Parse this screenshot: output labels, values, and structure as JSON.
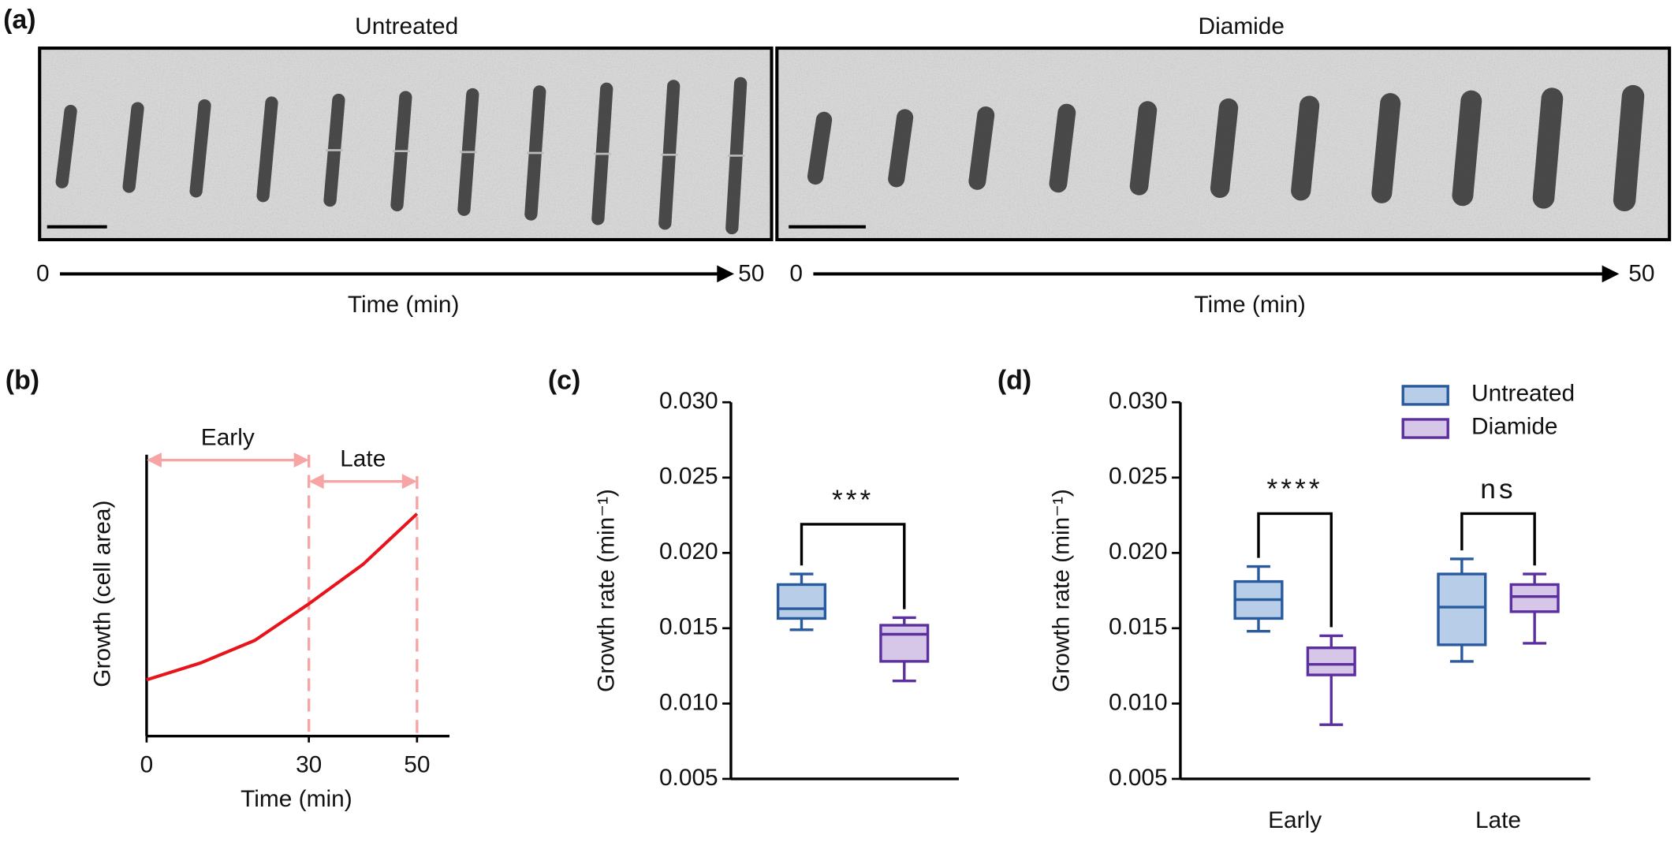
{
  "panel_a": {
    "label": "(a)",
    "panels": [
      {
        "title": "Untreated",
        "start": 0,
        "end": 50,
        "axis_label": "Time (min)"
      },
      {
        "title": "Diamide",
        "start": 0,
        "end": 50,
        "axis_label": "Time (min)"
      }
    ]
  },
  "chart_data": [
    {
      "type": "line",
      "panel": "(b)",
      "xlabel": "Time (min)",
      "ylabel": "Growth (cell area)",
      "x": [
        0,
        10,
        20,
        30,
        40,
        50
      ],
      "values": [
        20,
        26,
        34,
        47,
        61,
        79
      ],
      "color": "#e8141b",
      "xlim": [
        0,
        56
      ],
      "ylim": [
        0,
        100
      ],
      "xticks": [
        0,
        30,
        50
      ],
      "phases": [
        {
          "label": "Early",
          "start": 0,
          "end": 30
        },
        {
          "label": "Late",
          "start": 30,
          "end": 50
        }
      ],
      "phase_color": "#f7a4a4"
    },
    {
      "type": "box",
      "panel": "(c)",
      "ylabel": "Growth rate (min⁻¹)",
      "ylim": [
        0.005,
        0.03
      ],
      "yticks": [
        {
          "value": 0.005,
          "label": "0.005"
        },
        {
          "value": 0.01,
          "label": "0.010"
        },
        {
          "value": 0.015,
          "label": "0.015"
        },
        {
          "value": 0.02,
          "label": "0.020"
        },
        {
          "value": 0.025,
          "label": "0.025"
        },
        {
          "value": 0.03,
          "label": "0.030"
        }
      ],
      "boxes": [
        {
          "color": "#2a5a9e",
          "fill": "#b7cde8",
          "min": 0.0149,
          "q1": 0.01565,
          "median": 0.0163,
          "q3": 0.0179,
          "max": 0.0186
        },
        {
          "color": "#5b2f9e",
          "fill": "#d6c6e8",
          "min": 0.0115,
          "q1": 0.0128,
          "median": 0.0146,
          "q3": 0.0152,
          "max": 0.0157
        }
      ],
      "significance": "***"
    },
    {
      "type": "box",
      "panel": "(d)",
      "ylabel": "Growth rate (min⁻¹)",
      "ylim": [
        0.005,
        0.03
      ],
      "yticks": [
        {
          "value": 0.005,
          "label": "0.005"
        },
        {
          "value": 0.01,
          "label": "0.010"
        },
        {
          "value": 0.015,
          "label": "0.015"
        },
        {
          "value": 0.02,
          "label": "0.020"
        },
        {
          "value": 0.025,
          "label": "0.025"
        },
        {
          "value": 0.03,
          "label": "0.030"
        }
      ],
      "categories": [
        "Early",
        "Late"
      ],
      "series": [
        {
          "name": "Untreated",
          "color": "#2a5a9e",
          "fill": "#b7cde8",
          "values": [
            {
              "min": 0.0148,
              "q1": 0.01565,
              "median": 0.0169,
              "q3": 0.0181,
              "max": 0.0191
            },
            {
              "min": 0.0128,
              "q1": 0.0139,
              "median": 0.0164,
              "q3": 0.0186,
              "max": 0.0196
            }
          ]
        },
        {
          "name": "Diamide",
          "color": "#5b2f9e",
          "fill": "#d6c6e8",
          "values": [
            {
              "min": 0.0086,
              "q1": 0.0119,
              "median": 0.0126,
              "q3": 0.0137,
              "max": 0.0145
            },
            {
              "min": 0.014,
              "q1": 0.0161,
              "median": 0.0171,
              "q3": 0.0179,
              "max": 0.0186
            }
          ]
        }
      ],
      "significance": [
        "****",
        "ns"
      ],
      "legend": "top-right"
    }
  ]
}
